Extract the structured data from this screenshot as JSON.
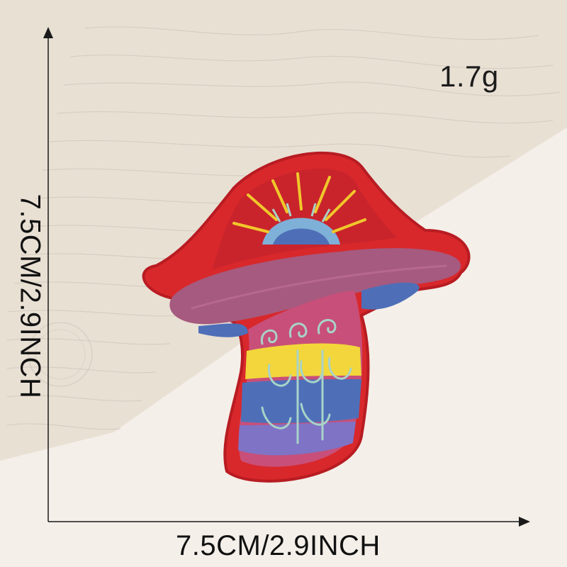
{
  "weight": "1.7g",
  "width_dimension": "7.5CM/2.9INCH",
  "height_dimension": "7.5CM/2.9INCH",
  "colors": {
    "background_paper": "#ece4da",
    "patch_border": "#d8282b",
    "cap_band": "#a65a7f",
    "stem_blue": "#4e6fb8",
    "stem_yellow": "#f2d63b",
    "stem_pink": "#c84f79",
    "sun_yellow": "#f0c82b"
  }
}
